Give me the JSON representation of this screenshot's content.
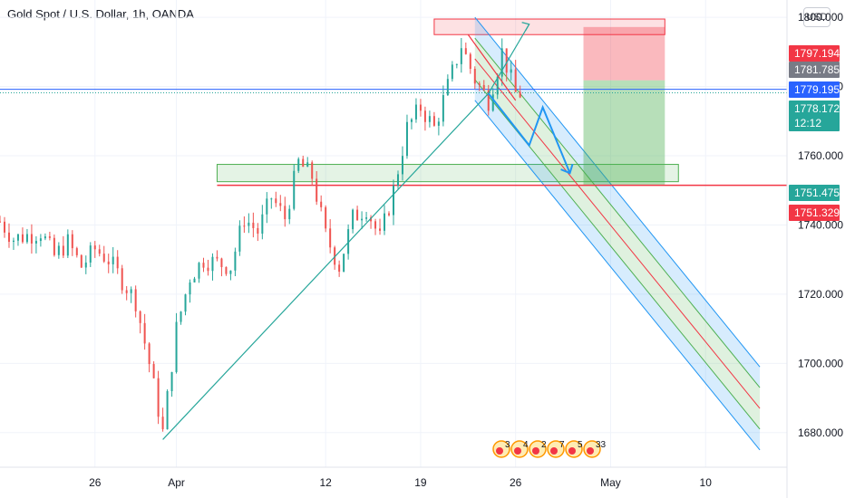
{
  "header": {
    "title": "Gold Spot / U.S. Dollar, 1h, OANDA",
    "currency": "USD"
  },
  "chart_data": {
    "type": "candlestick",
    "symbol": "XAUUSD",
    "timeframe": "1h",
    "ylim": [
      1670,
      1805
    ],
    "y_ticks": [
      {
        "value": 1680,
        "label": "1680.000"
      },
      {
        "value": 1700,
        "label": "1700.000"
      },
      {
        "value": 1720,
        "label": "1720.000"
      },
      {
        "value": 1740,
        "label": "1740.000"
      },
      {
        "value": 1760,
        "label": "1760.000"
      },
      {
        "value": 1780,
        "label": "1780.000"
      },
      {
        "value": 1800,
        "label": "1800.000"
      }
    ],
    "x_ticks": [
      {
        "label": "26",
        "date": "2021-03-26"
      },
      {
        "label": "Apr",
        "date": "2021-04-01"
      },
      {
        "label": "12",
        "date": "2021-04-12"
      },
      {
        "label": "19",
        "date": "2021-04-19"
      },
      {
        "label": "26",
        "date": "2021-04-26"
      },
      {
        "label": "May",
        "date": "2021-05-03"
      },
      {
        "label": "10",
        "date": "2021-05-10"
      }
    ],
    "price_labels": [
      {
        "value": 1797.194,
        "text": "1797.194",
        "color": "#f23645"
      },
      {
        "value": 1781.785,
        "text": "1781.785",
        "color": "#787b86"
      },
      {
        "value": 1779.195,
        "text": "1779.195",
        "color": "#2962ff"
      },
      {
        "value": 1778.172,
        "text": "1778.172",
        "sub": "12:12",
        "color": "#26a69a"
      },
      {
        "value": 1751.475,
        "text": "1751.475",
        "color": "#26a69a"
      },
      {
        "value": 1751.329,
        "text": "1751.329",
        "color": "#f23645"
      }
    ],
    "price_path": [
      [
        "2021-03-19",
        1741
      ],
      [
        "2021-03-20",
        1736
      ],
      [
        "2021-03-22",
        1738
      ],
      [
        "2021-03-23",
        1731
      ],
      [
        "2021-03-24",
        1735
      ],
      [
        "2021-03-25",
        1728
      ],
      [
        "2021-03-26",
        1733
      ],
      [
        "2021-03-27",
        1730
      ],
      [
        "2021-03-29",
        1718
      ],
      [
        "2021-03-30",
        1700
      ],
      [
        "2021-03-31",
        1680
      ],
      [
        "2021-04-01",
        1710
      ],
      [
        "2021-04-02",
        1725
      ],
      [
        "2021-04-03",
        1730
      ],
      [
        "2021-04-05",
        1728
      ],
      [
        "2021-04-06",
        1742
      ],
      [
        "2021-04-07",
        1738
      ],
      [
        "2021-04-08",
        1748
      ],
      [
        "2021-04-09",
        1742
      ],
      [
        "2021-04-10",
        1758
      ],
      [
        "2021-04-11",
        1754
      ],
      [
        "2021-04-12",
        1737
      ],
      [
        "2021-04-13",
        1728
      ],
      [
        "2021-04-14",
        1742
      ],
      [
        "2021-04-15",
        1745
      ],
      [
        "2021-04-16",
        1736
      ],
      [
        "2021-04-17",
        1750
      ],
      [
        "2021-04-18",
        1768
      ],
      [
        "2021-04-19",
        1774
      ],
      [
        "2021-04-20",
        1768
      ],
      [
        "2021-04-21",
        1780
      ],
      [
        "2021-04-22",
        1792
      ],
      [
        "2021-04-23",
        1782
      ],
      [
        "2021-04-24",
        1776
      ],
      [
        "2021-04-25",
        1790
      ],
      [
        "2021-04-26",
        1778
      ]
    ],
    "trendlines": [
      {
        "name": "up-trendline",
        "from": [
          "2021-03-31",
          1678
        ],
        "to": [
          "2021-04-24",
          1778
        ],
        "color": "#26a69a"
      },
      {
        "name": "up-extension",
        "from": [
          "2021-04-24",
          1778
        ],
        "to": [
          "2021-04-27",
          1798
        ],
        "color": "#26a69a"
      }
    ],
    "channel": {
      "start": "2021-04-23",
      "end": "2021-05-14",
      "mid_start": 1788,
      "mid_end": 1687,
      "outer_offset": 12,
      "inner_offset": 6
    },
    "zones": [
      {
        "name": "resistance-zone",
        "from": "2021-04-20",
        "to": "2021-05-07",
        "y0": 1795,
        "y1": 1799.5,
        "color": "#f23645"
      },
      {
        "name": "support-zone",
        "from": "2021-04-04",
        "to": "2021-05-08",
        "y0": 1752.5,
        "y1": 1757.5,
        "color": "#4caf50"
      }
    ],
    "position": {
      "from": "2021-05-01",
      "to": "2021-05-07",
      "stop": 1797.194,
      "entry": 1781.785,
      "target": 1751.475
    },
    "hlines": [
      {
        "name": "current-price-line",
        "value": 1778.172,
        "color": "#26a69a"
      },
      {
        "name": "blue-level-line",
        "value": 1779.195,
        "color": "#2962ff"
      },
      {
        "name": "support-line",
        "value": 1751.475,
        "color": "#f23645"
      }
    ],
    "projection_arrow": [
      [
        "2021-04-24",
        1778
      ],
      [
        "2021-04-27",
        1763
      ],
      [
        "2021-04-28",
        1774
      ],
      [
        "2021-04-30",
        1755
      ]
    ],
    "events": [
      "3",
      "4",
      "2",
      "7",
      "5",
      "33"
    ]
  }
}
